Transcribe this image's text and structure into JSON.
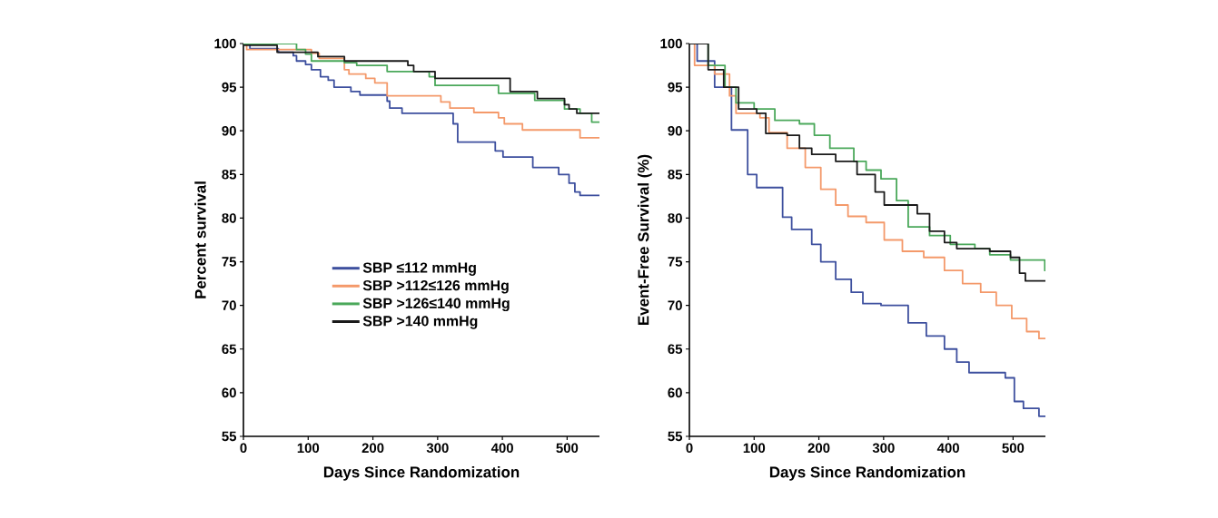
{
  "chart_data": [
    {
      "type": "step",
      "ylabel": "Percent survival",
      "xlabel": "Days Since Randomization",
      "xlim": [
        0,
        550
      ],
      "ylim": [
        55,
        100
      ],
      "xticks": [
        0,
        100,
        200,
        300,
        400,
        500
      ],
      "yticks": [
        55,
        60,
        65,
        70,
        75,
        80,
        85,
        90,
        95,
        100
      ],
      "legend": "center",
      "grid": false,
      "series": [
        {
          "name": "SBP ≤112 mmHg",
          "color": "#3d4f9e",
          "x": [
            0,
            10,
            54,
            77,
            82,
            96,
            105,
            119,
            131,
            140,
            166,
            180,
            222,
            226,
            245,
            324,
            331,
            389,
            401,
            447,
            487,
            503,
            512,
            520,
            550
          ],
          "values": [
            100,
            99.4,
            99,
            98.6,
            98,
            97.6,
            97,
            96.2,
            95.8,
            95,
            94.5,
            94.1,
            93.4,
            92.6,
            92,
            90.8,
            88.7,
            87.7,
            87,
            85.8,
            85,
            84,
            83,
            82.6,
            82.6
          ]
        },
        {
          "name": "SBP >112≤126 mmHg",
          "color": "#f4996a",
          "x": [
            0,
            5,
            105,
            117,
            156,
            163,
            189,
            203,
            222,
            305,
            319,
            356,
            394,
            403,
            431,
            520,
            550
          ],
          "values": [
            100,
            99.3,
            98.9,
            98.3,
            97,
            96.5,
            96,
            95.5,
            94,
            93.3,
            92.6,
            92.1,
            91.5,
            90.8,
            90.1,
            89.2,
            89.2
          ]
        },
        {
          "name": "SBP >126≤140 mmHg",
          "color": "#4aa85a",
          "x": [
            0,
            82,
            96,
            105,
            156,
            175,
            222,
            287,
            296,
            394,
            450,
            496,
            520,
            538,
            550
          ],
          "values": [
            100,
            99.3,
            98.8,
            98,
            97.8,
            97.5,
            96.8,
            96.2,
            95.2,
            94.3,
            93.5,
            92.5,
            92,
            91,
            91
          ]
        },
        {
          "name": "SBP >140 mmHg",
          "color": "#1a1a1a",
          "x": [
            0,
            52,
            115,
            156,
            254,
            263,
            296,
            412,
            454,
            496,
            503,
            515,
            550
          ],
          "values": [
            99.8,
            99,
            98.5,
            98,
            97.5,
            96.8,
            96,
            94.5,
            93.7,
            93,
            92.5,
            92,
            92
          ]
        }
      ]
    },
    {
      "type": "step",
      "ylabel": "Event-Free Survival (%)",
      "xlabel": "Days Since Randomization",
      "xlim": [
        0,
        550
      ],
      "ylim": [
        55,
        100
      ],
      "xticks": [
        0,
        100,
        200,
        300,
        400,
        500
      ],
      "yticks": [
        55,
        60,
        65,
        70,
        75,
        80,
        85,
        90,
        95,
        100
      ],
      "grid": false,
      "series": [
        {
          "color": "#3d4f9e",
          "x": [
            0,
            12,
            39,
            65,
            90,
            104,
            144,
            158,
            189,
            203,
            226,
            250,
            268,
            296,
            324,
            338,
            366,
            394,
            413,
            432,
            470,
            488,
            502,
            516,
            540,
            550
          ],
          "values": [
            100,
            98,
            95,
            90.1,
            85,
            83.5,
            80.1,
            78.7,
            77,
            75,
            73,
            71.5,
            70.2,
            70,
            70,
            68,
            66.5,
            65,
            63.5,
            62.3,
            62.3,
            61.7,
            59,
            58.2,
            57.3,
            57.3
          ]
        },
        {
          "color": "#f4996a",
          "x": [
            0,
            8,
            39,
            62,
            72,
            109,
            123,
            151,
            179,
            203,
            226,
            245,
            273,
            301,
            329,
            362,
            394,
            422,
            450,
            474,
            498,
            521,
            540,
            550
          ],
          "values": [
            100,
            97.5,
            96.5,
            94,
            92,
            91.5,
            89.8,
            88,
            85.8,
            83.3,
            81.5,
            80.2,
            79.5,
            77.5,
            76.2,
            75.5,
            74,
            72.5,
            71.5,
            70,
            68.5,
            67,
            66.2,
            66.2
          ]
        },
        {
          "color": "#4aa85a",
          "x": [
            0,
            29,
            55,
            72,
            100,
            132,
            170,
            193,
            217,
            254,
            273,
            296,
            320,
            338,
            371,
            403,
            441,
            464,
            496,
            549,
            550
          ],
          "values": [
            100,
            97.5,
            95,
            93.2,
            92.5,
            91.2,
            90.8,
            89.5,
            88,
            86.5,
            85.5,
            84.5,
            82,
            79,
            78,
            77,
            76.5,
            75.8,
            75.2,
            74,
            74
          ]
        },
        {
          "color": "#1a1a1a",
          "x": [
            0,
            29,
            53,
            76,
            104,
            118,
            151,
            170,
            189,
            226,
            259,
            287,
            301,
            338,
            352,
            371,
            394,
            413,
            464,
            496,
            510,
            519,
            550
          ],
          "values": [
            100,
            97,
            95,
            92.5,
            92,
            89.7,
            89.5,
            88,
            87.3,
            86.5,
            85,
            83,
            81.5,
            81.5,
            80.5,
            78.5,
            77.2,
            76.5,
            76.2,
            75.5,
            73.7,
            72.8,
            72.8
          ]
        }
      ]
    }
  ]
}
